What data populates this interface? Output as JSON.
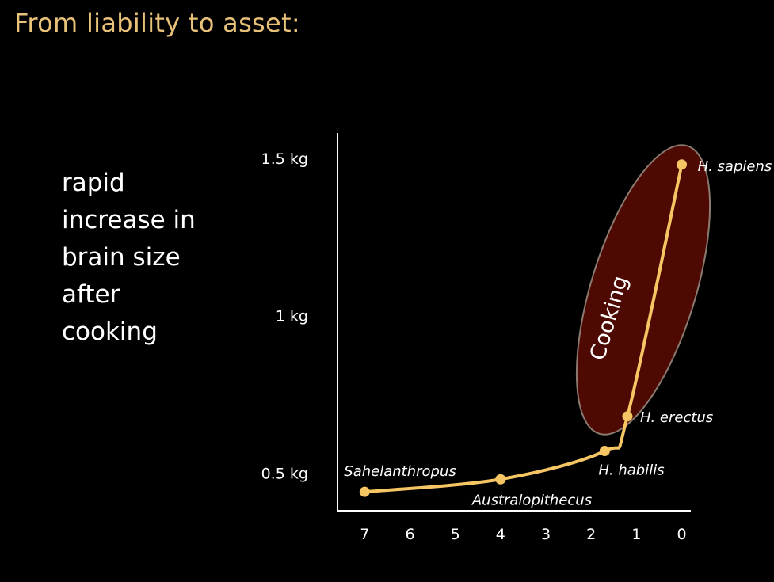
{
  "slide": {
    "title": "From liability to asset:",
    "note_lines": [
      "rapid",
      "increase in",
      "brain size",
      "after",
      "cooking"
    ]
  },
  "chart_data": {
    "type": "line",
    "title": "",
    "xlabel": "",
    "ylabel": "",
    "x_ticks": [
      "7",
      "6",
      "5",
      "4",
      "3",
      "2",
      "1",
      "0"
    ],
    "x_tick_values": [
      7,
      6,
      5,
      4,
      3,
      2,
      1,
      0
    ],
    "y_ticks": [
      "0.5 kg",
      "1 kg",
      "1.5 kg"
    ],
    "y_tick_values": [
      0.5,
      1.0,
      1.5
    ],
    "xlim": [
      7.6,
      -0.2
    ],
    "ylim": [
      0.38,
      1.58
    ],
    "x_reversed": true,
    "grid": false,
    "line_color": "#f6c564",
    "series": [
      {
        "points": [
          {
            "x": 7.0,
            "y": 0.44,
            "label": "Sahelanthropus"
          },
          {
            "x": 4.0,
            "y": 0.48,
            "label": "Australopithecus"
          },
          {
            "x": 1.7,
            "y": 0.57,
            "label": "H. habilis"
          },
          {
            "x": 1.2,
            "y": 0.68,
            "label": "H. erectus"
          },
          {
            "x": 0.0,
            "y": 1.48,
            "label": "H. sapiens"
          }
        ]
      }
    ],
    "highlight_region": {
      "label": "Cooking",
      "color": "#4e0a02"
    }
  }
}
